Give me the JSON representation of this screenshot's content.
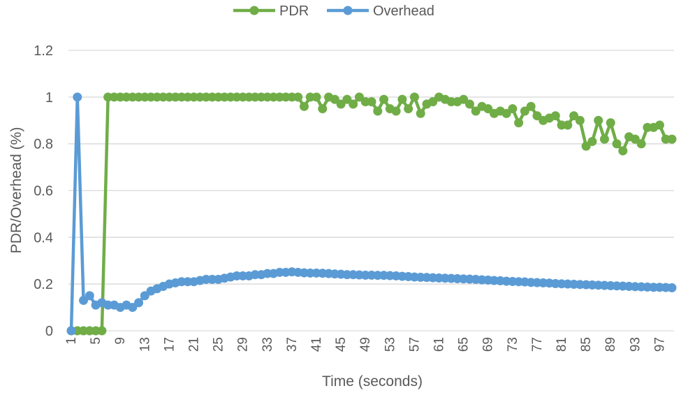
{
  "chart_data": {
    "type": "line",
    "title": "",
    "xlabel": "Time (seconds)",
    "ylabel": "PDR/Overhead (%)",
    "ylim": [
      0,
      1.2
    ],
    "y_ticks": [
      "0",
      "0.2",
      "0.4",
      "0.6",
      "0.8",
      "1",
      "1.2"
    ],
    "y_tick_values": [
      0,
      0.2,
      0.4,
      0.6,
      0.8,
      1,
      1.2
    ],
    "x_tick_labels": [
      "1",
      "5",
      "9",
      "13",
      "17",
      "21",
      "25",
      "29",
      "33",
      "37",
      "41",
      "45",
      "49",
      "53",
      "57",
      "61",
      "65",
      "69",
      "73",
      "77",
      "81",
      "85",
      "89",
      "93",
      "97"
    ],
    "grid": true,
    "legend_position": "top-center",
    "x": [
      1,
      2,
      3,
      4,
      5,
      6,
      7,
      8,
      9,
      10,
      11,
      12,
      13,
      14,
      15,
      16,
      17,
      18,
      19,
      20,
      21,
      22,
      23,
      24,
      25,
      26,
      27,
      28,
      29,
      30,
      31,
      32,
      33,
      34,
      35,
      36,
      37,
      38,
      39,
      40,
      41,
      42,
      43,
      44,
      45,
      46,
      47,
      48,
      49,
      50,
      51,
      52,
      53,
      54,
      55,
      56,
      57,
      58,
      59,
      60,
      61,
      62,
      63,
      64,
      65,
      66,
      67,
      68,
      69,
      70,
      71,
      72,
      73,
      74,
      75,
      76,
      77,
      78,
      79,
      80,
      81,
      82,
      83,
      84,
      85,
      86,
      87,
      88,
      89,
      90,
      91,
      92,
      93,
      94,
      95,
      96,
      97,
      98,
      99
    ],
    "series": [
      {
        "name": "PDR",
        "color": "#70ad47",
        "values": [
          0,
          0,
          0,
          0,
          0,
          0,
          1,
          1,
          1,
          1,
          1,
          1,
          1,
          1,
          1,
          1,
          1,
          1,
          1,
          1,
          1,
          1,
          1,
          1,
          1,
          1,
          1,
          1,
          1,
          1,
          1,
          1,
          1,
          1,
          1,
          1,
          1,
          1,
          0.96,
          1,
          1,
          0.95,
          1,
          0.99,
          0.97,
          0.99,
          0.97,
          1,
          0.98,
          0.98,
          0.94,
          0.99,
          0.95,
          0.94,
          0.99,
          0.95,
          1,
          0.93,
          0.97,
          0.98,
          1,
          0.99,
          0.98,
          0.98,
          0.99,
          0.97,
          0.94,
          0.96,
          0.95,
          0.93,
          0.94,
          0.93,
          0.95,
          0.89,
          0.94,
          0.96,
          0.92,
          0.9,
          0.91,
          0.92,
          0.88,
          0.88,
          0.92,
          0.9,
          0.79,
          0.81,
          0.9,
          0.82,
          0.89,
          0.8,
          0.77,
          0.83,
          0.82,
          0.8,
          0.87,
          0.87,
          0.88,
          0.82,
          0.82
        ]
      },
      {
        "name": "Overhead",
        "color": "#5b9bd5",
        "values": [
          0,
          1,
          0.13,
          0.15,
          0.11,
          0.12,
          0.11,
          0.11,
          0.1,
          0.11,
          0.1,
          0.12,
          0.15,
          0.17,
          0.18,
          0.19,
          0.2,
          0.205,
          0.21,
          0.21,
          0.21,
          0.215,
          0.22,
          0.22,
          0.22,
          0.225,
          0.23,
          0.235,
          0.235,
          0.235,
          0.24,
          0.24,
          0.245,
          0.245,
          0.25,
          0.25,
          0.252,
          0.25,
          0.248,
          0.247,
          0.247,
          0.246,
          0.245,
          0.243,
          0.242,
          0.24,
          0.24,
          0.239,
          0.238,
          0.238,
          0.237,
          0.237,
          0.236,
          0.235,
          0.233,
          0.232,
          0.23,
          0.229,
          0.228,
          0.227,
          0.226,
          0.225,
          0.224,
          0.223,
          0.222,
          0.221,
          0.22,
          0.218,
          0.217,
          0.215,
          0.214,
          0.212,
          0.211,
          0.21,
          0.209,
          0.207,
          0.206,
          0.205,
          0.204,
          0.202,
          0.201,
          0.2,
          0.199,
          0.198,
          0.197,
          0.196,
          0.195,
          0.194,
          0.193,
          0.192,
          0.191,
          0.19,
          0.189,
          0.188,
          0.187,
          0.186,
          0.186,
          0.185,
          0.184
        ]
      }
    ]
  }
}
